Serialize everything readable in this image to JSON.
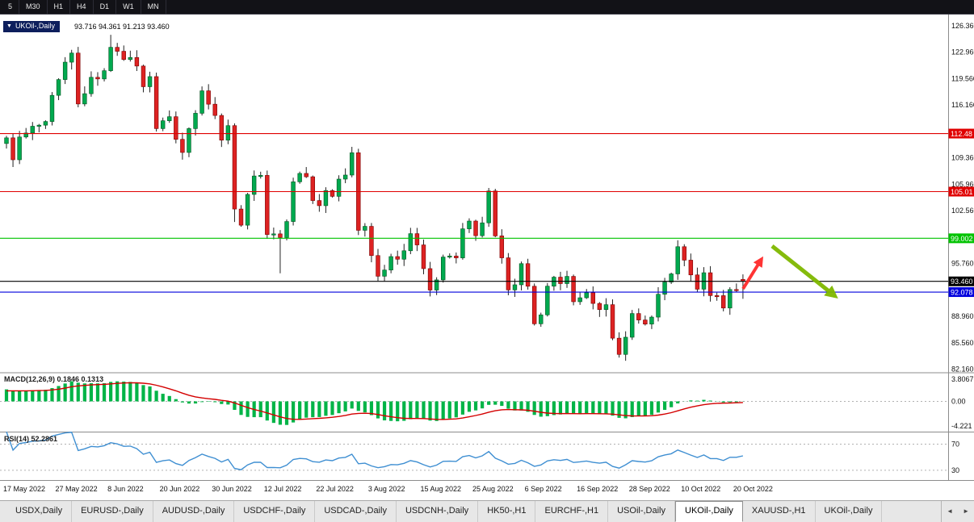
{
  "toolbar": {
    "items": [
      "5",
      "M30",
      "H1",
      "H4",
      "D1",
      "W1",
      "MN"
    ]
  },
  "chart": {
    "badge_icon": "▼",
    "badge": "UKOil-,Daily",
    "ohlc_text": "93.716 94.361 91.213 93.460",
    "macd_label": "MACD(12,26,9) 0.1846 0.1313",
    "rsi_label": "RSI(14) 52.2861"
  },
  "chart_data": {
    "type": "candlestick",
    "symbol": "UKOil-",
    "timeframe": "Daily",
    "title": "UKOil-,Daily 93.716 94.361 91.213 93.460",
    "ohlc_current": {
      "open": 93.716,
      "high": 94.361,
      "low": 91.213,
      "close": 93.46
    },
    "ylim": [
      81.7,
      127.8
    ],
    "price_ticks": [
      "126.360",
      "122.960",
      "119.560",
      "116.160",
      "109.360",
      "105.960",
      "102.560",
      "95.760",
      "88.960",
      "85.560",
      "82.160"
    ],
    "hlines": [
      {
        "price": 112.48,
        "label": "112.48",
        "color": "#e00000"
      },
      {
        "price": 105.01,
        "label": "105.01",
        "color": "#e00000"
      },
      {
        "price": 99.002,
        "label": "99.002",
        "color": "#00c300"
      },
      {
        "price": 93.46,
        "label": "93.460",
        "color": "#000000"
      },
      {
        "price": 92.078,
        "label": "92.078",
        "color": "#0000dd"
      }
    ],
    "time_labels": [
      {
        "text": "17 May 2022",
        "bar": 0
      },
      {
        "text": "27 May 2022",
        "bar": 8
      },
      {
        "text": "8 Jun 2022",
        "bar": 16
      },
      {
        "text": "20 Jun 2022",
        "bar": 24
      },
      {
        "text": "30 Jun 2022",
        "bar": 32
      },
      {
        "text": "12 Jul 2022",
        "bar": 40
      },
      {
        "text": "22 Jul 2022",
        "bar": 48
      },
      {
        "text": "3 Aug 2022",
        "bar": 56
      },
      {
        "text": "15 Aug 2022",
        "bar": 64
      },
      {
        "text": "25 Aug 2022",
        "bar": 72
      },
      {
        "text": "6 Sep 2022",
        "bar": 80
      },
      {
        "text": "16 Sep 2022",
        "bar": 88
      },
      {
        "text": "28 Sep 2022",
        "bar": 96
      },
      {
        "text": "10 Oct 2022",
        "bar": 104
      },
      {
        "text": "20 Oct 2022",
        "bar": 112
      }
    ],
    "closes": [
      111.93,
      109.11,
      112.04,
      112.55,
      113.42,
      113.56,
      114.03,
      117.4,
      119.43,
      121.67,
      122.84,
      116.29,
      117.61,
      119.72,
      119.51,
      120.57,
      123.58,
      123.07,
      122.01,
      122.27,
      121.17,
      118.51,
      119.81,
      113.12,
      114.13,
      114.65,
      111.74,
      110.05,
      113.12,
      115.09,
      117.98,
      116.26,
      114.81,
      111.63,
      113.5,
      102.77,
      100.69,
      104.65,
      107.02,
      107.1,
      99.49,
      99.57,
      99.1,
      101.16,
      106.27,
      107.35,
      106.92,
      103.86,
      103.2,
      105.15,
      104.4,
      106.62,
      107.14,
      110.01,
      100.03,
      100.54,
      96.78,
      94.12,
      94.92,
      96.65,
      96.31,
      97.4,
      99.6,
      98.15,
      95.1,
      92.34,
      93.65,
      96.59,
      96.72,
      96.48,
      100.22,
      101.22,
      99.34,
      100.99,
      105.09,
      99.31,
      96.49,
      92.36,
      93.02,
      95.74,
      92.83,
      88.0,
      89.15,
      92.84,
      94.0,
      93.17,
      94.1,
      90.84,
      91.35,
      92.0,
      90.62,
      89.83,
      90.46,
      86.15,
      84.06,
      86.27,
      89.32,
      88.49,
      87.96,
      88.86,
      91.8,
      93.37,
      94.42,
      97.92,
      96.19,
      94.29,
      92.45,
      94.57,
      91.63,
      91.62,
      90.03,
      92.41,
      92.38,
      93.46
    ],
    "wick_overrides": {
      "16": {
        "h": 125.19
      },
      "35": {
        "l": 101.1
      },
      "42": {
        "l": 94.5
      },
      "74": {
        "h": 105.48
      },
      "94": {
        "l": 83.65
      },
      "103": {
        "h": 98.75
      },
      "113": {
        "o": 93.716,
        "h": 94.361,
        "l": 91.213
      }
    },
    "indicators": {
      "macd": {
        "params": "12,26,9",
        "values_text": [
          "0.1846",
          "0.1313"
        ],
        "axis_ticks": [
          "3.8067",
          "0.00",
          "-4.221"
        ],
        "ylim": [
          -5.19,
          4.91
        ]
      },
      "rsi": {
        "params": "14",
        "value_text": "52.2861",
        "axis_ticks": [
          "70",
          "30"
        ],
        "levels": [
          70,
          30
        ],
        "ylim": [
          15,
          88
        ]
      }
    },
    "annotations": [
      {
        "name": "red-up-arrow",
        "color": "#ff2a2a",
        "from": [
          920,
          358
        ],
        "to": [
          943,
          321
        ],
        "width": 4
      },
      {
        "name": "green-down-arrow",
        "color": "#7fb800",
        "from": [
          956,
          305
        ],
        "to": [
          1034,
          367
        ],
        "width": 5
      }
    ],
    "colors": {
      "bull": "#00a94f",
      "bull_edge": "#00551f",
      "bear": "#dd2222",
      "bear_edge": "#7c0000",
      "wick": "#222222",
      "hist": "#00b447",
      "signal": "#d40000",
      "rsi": "#3f8fd2",
      "grid": "#b0b0b0",
      "axis_text": "#111111",
      "separator": "#8c8c8c"
    }
  },
  "tabs": {
    "active_index": 9,
    "items": [
      "USDX,Daily",
      "EURUSD-,Daily",
      "AUDUSD-,Daily",
      "USDCHF-,Daily",
      "USDCAD-,Daily",
      "USDCNH-,Daily",
      "HK50-,H1",
      "EURCHF-,H1",
      "USOil-,Daily",
      "UKOil-,Daily",
      "XAUUSD-,H1",
      "UKOil-,Daily"
    ],
    "scroll_left": "◄",
    "scroll_right": "►"
  }
}
